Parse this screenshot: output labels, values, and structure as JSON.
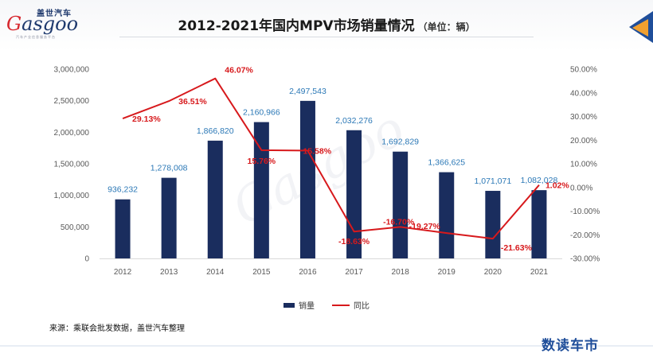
{
  "header": {
    "logo_cn": "盖世汽车",
    "logo_en_g": "G",
    "logo_en_rest": "asgoo",
    "logo_sub": "汽车产业信息服务平台",
    "title": "2012-2021年国内MPV市场销量情况",
    "unit": "（单位：辆）"
  },
  "chart_data": {
    "type": "bar",
    "categories": [
      "2012",
      "2013",
      "2014",
      "2015",
      "2016",
      "2017",
      "2018",
      "2019",
      "2020",
      "2021"
    ],
    "series": [
      {
        "name": "销量",
        "type": "bar",
        "axis": "left",
        "values": [
          936232,
          1278008,
          1866820,
          2160966,
          2497543,
          2032276,
          1692829,
          1366625,
          1071071,
          1082028
        ]
      },
      {
        "name": "同比",
        "type": "line",
        "axis": "right",
        "values": [
          29.13,
          36.51,
          46.07,
          15.76,
          15.58,
          -18.63,
          -16.7,
          -19.27,
          -21.63,
          1.02
        ]
      }
    ],
    "bar_labels": [
      "936,232",
      "1,278,008",
      "1,866,820",
      "2,160,966",
      "2,497,543",
      "2,032,276",
      "1,692,829",
      "1,366,625",
      "1,071,071",
      "1,082,028"
    ],
    "line_labels": [
      "29.13%",
      "36.51%",
      "46.07%",
      "15.76%",
      "15.58%",
      "-18.63%",
      "-16.70%",
      "-19.27%",
      "-21.63%",
      "1.02%"
    ],
    "y_left": {
      "ylim": [
        0,
        3000000
      ],
      "ticks": [
        "0",
        "500,000",
        "1,000,000",
        "1,500,000",
        "2,000,000",
        "2,500,000",
        "3,000,000"
      ]
    },
    "y_right": {
      "ylim": [
        -30,
        50
      ],
      "ticks": [
        "-30.00%",
        "-20.00%",
        "-10.00%",
        "0.00%",
        "10.00%",
        "20.00%",
        "30.00%",
        "40.00%",
        "50.00%"
      ]
    },
    "colors": {
      "bar": "#1a2d5e",
      "line": "#d7191c",
      "bar_label": "#2b78b6",
      "line_label": "#d7191c",
      "axis_text": "#595959"
    },
    "grid": false,
    "legend": "bottom"
  },
  "legend": {
    "bar": "销量",
    "line": "同比"
  },
  "footer": {
    "source": "来源：乘联会批发数据，盖世汽车整理",
    "brand": "数读车市"
  }
}
